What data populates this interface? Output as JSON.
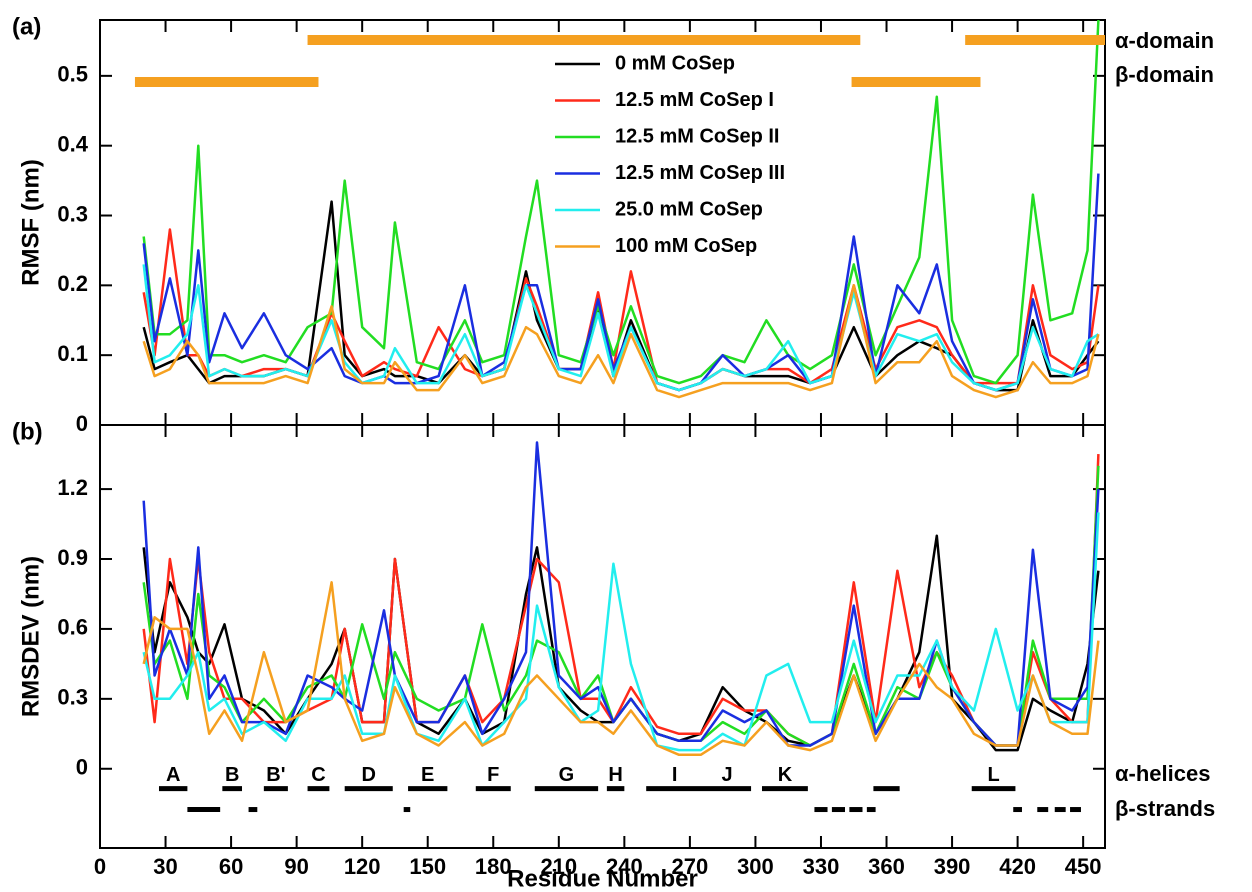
{
  "chart_data": [
    {
      "type": "line",
      "panel_label": "(a)",
      "y_label": "RMSF (nm)",
      "x": [
        20,
        25,
        32,
        40,
        45,
        50,
        57,
        65,
        75,
        85,
        95,
        106,
        112,
        120,
        130,
        135,
        145,
        155,
        167,
        175,
        185,
        195,
        200,
        210,
        220,
        228,
        235,
        243,
        255,
        265,
        275,
        285,
        295,
        305,
        315,
        325,
        335,
        345,
        355,
        365,
        375,
        383,
        390,
        400,
        410,
        420,
        427,
        435,
        445,
        452,
        457
      ],
      "xlim": [
        0,
        460
      ],
      "xticks": [
        0,
        30,
        60,
        90,
        120,
        150,
        180,
        210,
        240,
        270,
        300,
        330,
        360,
        390,
        420,
        450
      ],
      "ylim": [
        0,
        0.58
      ],
      "yticks": [
        0,
        0.1,
        0.2,
        0.3,
        0.4,
        0.5
      ],
      "series": [
        {
          "name": "0 mM CoSep",
          "color": "#000000",
          "values": [
            0.14,
            0.08,
            0.09,
            0.1,
            0.08,
            0.06,
            0.07,
            0.07,
            0.07,
            0.08,
            0.07,
            0.32,
            0.1,
            0.07,
            0.08,
            0.07,
            0.07,
            0.06,
            0.1,
            0.07,
            0.08,
            0.22,
            0.15,
            0.08,
            0.08,
            0.17,
            0.07,
            0.15,
            0.06,
            0.05,
            0.06,
            0.08,
            0.07,
            0.07,
            0.07,
            0.06,
            0.07,
            0.14,
            0.07,
            0.1,
            0.12,
            0.11,
            0.1,
            0.06,
            0.05,
            0.05,
            0.15,
            0.07,
            0.07,
            0.1,
            0.12
          ]
        },
        {
          "name": "12.5 mM CoSep I",
          "color": "#ff2a1a",
          "values": [
            0.19,
            0.1,
            0.28,
            0.1,
            0.1,
            0.07,
            0.08,
            0.07,
            0.08,
            0.08,
            0.07,
            0.16,
            0.12,
            0.07,
            0.09,
            0.08,
            0.07,
            0.14,
            0.08,
            0.07,
            0.08,
            0.21,
            0.17,
            0.08,
            0.08,
            0.19,
            0.08,
            0.22,
            0.06,
            0.05,
            0.06,
            0.08,
            0.07,
            0.08,
            0.08,
            0.06,
            0.08,
            0.2,
            0.08,
            0.14,
            0.15,
            0.14,
            0.1,
            0.06,
            0.06,
            0.06,
            0.2,
            0.1,
            0.08,
            0.09,
            0.2
          ]
        },
        {
          "name": "12.5 mM CoSep II",
          "color": "#22dd22",
          "values": [
            0.27,
            0.13,
            0.13,
            0.15,
            0.4,
            0.1,
            0.1,
            0.09,
            0.1,
            0.09,
            0.14,
            0.16,
            0.35,
            0.14,
            0.11,
            0.29,
            0.09,
            0.08,
            0.15,
            0.09,
            0.1,
            0.27,
            0.35,
            0.1,
            0.09,
            0.17,
            0.1,
            0.17,
            0.07,
            0.06,
            0.07,
            0.1,
            0.09,
            0.15,
            0.1,
            0.08,
            0.1,
            0.23,
            0.1,
            0.17,
            0.24,
            0.47,
            0.15,
            0.07,
            0.06,
            0.1,
            0.33,
            0.15,
            0.16,
            0.25,
            0.58
          ]
        },
        {
          "name": "12.5 mM CoSep III",
          "color": "#1a2ee0",
          "values": [
            0.26,
            0.12,
            0.21,
            0.1,
            0.25,
            0.09,
            0.16,
            0.11,
            0.16,
            0.1,
            0.08,
            0.11,
            0.07,
            0.06,
            0.07,
            0.06,
            0.06,
            0.07,
            0.2,
            0.07,
            0.09,
            0.2,
            0.2,
            0.08,
            0.08,
            0.18,
            0.08,
            0.14,
            0.06,
            0.05,
            0.06,
            0.1,
            0.07,
            0.08,
            0.1,
            0.06,
            0.07,
            0.27,
            0.07,
            0.2,
            0.16,
            0.23,
            0.12,
            0.06,
            0.05,
            0.06,
            0.18,
            0.08,
            0.07,
            0.08,
            0.36
          ]
        },
        {
          "name": "25.0 mM CoSep",
          "color": "#22eeee",
          "values": [
            0.23,
            0.09,
            0.1,
            0.13,
            0.2,
            0.07,
            0.08,
            0.07,
            0.07,
            0.08,
            0.07,
            0.15,
            0.09,
            0.06,
            0.07,
            0.11,
            0.06,
            0.06,
            0.13,
            0.07,
            0.08,
            0.2,
            0.16,
            0.08,
            0.07,
            0.16,
            0.07,
            0.14,
            0.06,
            0.05,
            0.06,
            0.08,
            0.07,
            0.08,
            0.12,
            0.06,
            0.07,
            0.19,
            0.07,
            0.13,
            0.12,
            0.13,
            0.09,
            0.06,
            0.05,
            0.06,
            0.14,
            0.08,
            0.07,
            0.12,
            0.13
          ]
        },
        {
          "name": "100 mM CoSep",
          "color": "#f5a020",
          "values": [
            0.12,
            0.07,
            0.08,
            0.12,
            0.1,
            0.06,
            0.06,
            0.06,
            0.06,
            0.07,
            0.06,
            0.17,
            0.08,
            0.06,
            0.06,
            0.09,
            0.05,
            0.05,
            0.1,
            0.06,
            0.07,
            0.14,
            0.13,
            0.07,
            0.06,
            0.1,
            0.06,
            0.13,
            0.05,
            0.04,
            0.05,
            0.06,
            0.06,
            0.06,
            0.06,
            0.05,
            0.06,
            0.2,
            0.06,
            0.09,
            0.09,
            0.12,
            0.07,
            0.05,
            0.04,
            0.05,
            0.09,
            0.06,
            0.06,
            0.07,
            0.13
          ]
        }
      ],
      "domains": [
        {
          "label": "α-domain",
          "color": "#f5a020",
          "ranges": [
            [
              95,
              348
            ],
            [
              396,
              460
            ]
          ]
        },
        {
          "label": "β-domain",
          "color": "#f5a020",
          "ranges": [
            [
              16,
              100
            ],
            [
              344,
              403
            ]
          ]
        }
      ]
    },
    {
      "type": "line",
      "panel_label": "(b)",
      "y_label": "RMSDEV (nm)",
      "x_label": "Residue Number",
      "x": [
        20,
        25,
        32,
        40,
        45,
        50,
        57,
        65,
        75,
        85,
        95,
        106,
        112,
        120,
        130,
        135,
        145,
        155,
        167,
        175,
        185,
        195,
        200,
        210,
        220,
        228,
        235,
        243,
        255,
        265,
        275,
        285,
        295,
        305,
        315,
        325,
        335,
        345,
        355,
        365,
        375,
        383,
        390,
        400,
        410,
        420,
        427,
        435,
        445,
        452,
        457
      ],
      "xlim": [
        0,
        460
      ],
      "xticks": [
        0,
        30,
        60,
        90,
        120,
        150,
        180,
        210,
        240,
        270,
        300,
        330,
        360,
        390,
        420,
        450
      ],
      "ylim": [
        -0.34,
        1.475
      ],
      "yticks": [
        0,
        0.3,
        0.6,
        0.9,
        1.2
      ],
      "series": [
        {
          "name": "0 mM CoSep",
          "color": "#000000",
          "values": [
            0.95,
            0.5,
            0.8,
            0.65,
            0.5,
            0.45,
            0.62,
            0.3,
            0.25,
            0.15,
            0.3,
            0.45,
            0.6,
            0.2,
            0.2,
            0.9,
            0.2,
            0.15,
            0.3,
            0.15,
            0.2,
            0.75,
            0.95,
            0.35,
            0.25,
            0.2,
            0.2,
            0.3,
            0.15,
            0.12,
            0.15,
            0.35,
            0.25,
            0.2,
            0.12,
            0.1,
            0.15,
            0.4,
            0.15,
            0.3,
            0.5,
            1.0,
            0.3,
            0.2,
            0.08,
            0.08,
            0.3,
            0.25,
            0.2,
            0.45,
            0.85
          ]
        },
        {
          "name": "12.5 mM CoSep I",
          "color": "#ff2a1a",
          "values": [
            0.6,
            0.2,
            0.9,
            0.45,
            0.9,
            0.5,
            0.3,
            0.3,
            0.2,
            0.2,
            0.25,
            0.3,
            0.6,
            0.2,
            0.2,
            0.9,
            0.2,
            0.2,
            0.4,
            0.2,
            0.3,
            0.7,
            0.9,
            0.8,
            0.3,
            0.3,
            0.2,
            0.35,
            0.18,
            0.15,
            0.15,
            0.3,
            0.25,
            0.25,
            0.15,
            0.1,
            0.15,
            0.8,
            0.2,
            0.85,
            0.35,
            0.5,
            0.4,
            0.2,
            0.1,
            0.1,
            0.5,
            0.3,
            0.2,
            0.2,
            1.35
          ]
        },
        {
          "name": "12.5 mM CoSep II",
          "color": "#22dd22",
          "values": [
            0.8,
            0.45,
            0.55,
            0.3,
            0.75,
            0.4,
            0.35,
            0.2,
            0.3,
            0.2,
            0.35,
            0.4,
            0.3,
            0.62,
            0.3,
            0.5,
            0.3,
            0.25,
            0.3,
            0.62,
            0.25,
            0.4,
            0.55,
            0.5,
            0.3,
            0.4,
            0.2,
            0.3,
            0.15,
            0.12,
            0.12,
            0.2,
            0.15,
            0.25,
            0.15,
            0.1,
            0.15,
            0.45,
            0.15,
            0.35,
            0.3,
            0.5,
            0.35,
            0.2,
            0.1,
            0.1,
            0.55,
            0.3,
            0.3,
            0.3,
            1.3
          ]
        },
        {
          "name": "12.5 mM CoSep III",
          "color": "#1a2ee0",
          "values": [
            1.15,
            0.4,
            0.6,
            0.4,
            0.95,
            0.3,
            0.4,
            0.2,
            0.2,
            0.15,
            0.4,
            0.35,
            0.3,
            0.25,
            0.68,
            0.4,
            0.2,
            0.2,
            0.4,
            0.15,
            0.3,
            0.5,
            1.4,
            0.4,
            0.3,
            0.35,
            0.2,
            0.3,
            0.15,
            0.12,
            0.12,
            0.25,
            0.2,
            0.25,
            0.1,
            0.1,
            0.15,
            0.7,
            0.15,
            0.3,
            0.3,
            0.55,
            0.35,
            0.2,
            0.1,
            0.1,
            0.94,
            0.3,
            0.25,
            0.35,
            1.2
          ]
        },
        {
          "name": "25.0 mM CoSep",
          "color": "#22eeee",
          "values": [
            0.5,
            0.3,
            0.3,
            0.4,
            0.5,
            0.25,
            0.3,
            0.15,
            0.2,
            0.12,
            0.3,
            0.3,
            0.4,
            0.15,
            0.15,
            0.4,
            0.15,
            0.12,
            0.3,
            0.1,
            0.2,
            0.3,
            0.7,
            0.35,
            0.2,
            0.25,
            0.88,
            0.45,
            0.1,
            0.08,
            0.08,
            0.15,
            0.1,
            0.4,
            0.45,
            0.2,
            0.2,
            0.55,
            0.2,
            0.4,
            0.4,
            0.55,
            0.35,
            0.25,
            0.6,
            0.25,
            0.4,
            0.2,
            0.2,
            0.2,
            1.1
          ]
        },
        {
          "name": "100 mM CoSep",
          "color": "#f5a020",
          "values": [
            0.45,
            0.65,
            0.6,
            0.6,
            0.4,
            0.15,
            0.25,
            0.12,
            0.5,
            0.2,
            0.25,
            0.8,
            0.3,
            0.12,
            0.15,
            0.35,
            0.15,
            0.1,
            0.2,
            0.1,
            0.15,
            0.35,
            0.4,
            0.3,
            0.2,
            0.2,
            0.15,
            0.25,
            0.1,
            0.06,
            0.06,
            0.12,
            0.1,
            0.2,
            0.1,
            0.08,
            0.12,
            0.4,
            0.12,
            0.3,
            0.45,
            0.35,
            0.3,
            0.15,
            0.1,
            0.1,
            0.4,
            0.2,
            0.15,
            0.15,
            0.55
          ]
        }
      ],
      "helices": {
        "label": "α-helices",
        "segments": [
          {
            "label": "A",
            "start": 27,
            "end": 40
          },
          {
            "label": "B",
            "start": 56,
            "end": 65
          },
          {
            "label": "B'",
            "start": 75,
            "end": 86
          },
          {
            "label": "C",
            "start": 95,
            "end": 105
          },
          {
            "label": "D",
            "start": 112,
            "end": 134
          },
          {
            "label": "E",
            "start": 141,
            "end": 159
          },
          {
            "label": "F",
            "start": 172,
            "end": 188
          },
          {
            "label": "G",
            "start": 199,
            "end": 228
          },
          {
            "label": "H",
            "start": 232,
            "end": 240
          },
          {
            "label": "I",
            "start": 250,
            "end": 276
          },
          {
            "label": "J",
            "start": 276,
            "end": 298
          },
          {
            "label": "K",
            "start": 303,
            "end": 324
          },
          {
            "label": null,
            "start": 354,
            "end": 366
          },
          {
            "label": "L",
            "start": 399,
            "end": 419
          }
        ]
      },
      "strands": {
        "label": "β-strands",
        "ranges": [
          [
            40,
            55
          ],
          [
            68,
            72
          ],
          [
            139,
            142
          ],
          [
            327,
            333
          ],
          [
            335,
            341
          ],
          [
            343,
            349
          ],
          [
            351,
            355
          ],
          [
            418,
            422
          ],
          [
            429,
            434
          ],
          [
            437,
            442
          ],
          [
            444,
            449
          ]
        ]
      }
    }
  ]
}
